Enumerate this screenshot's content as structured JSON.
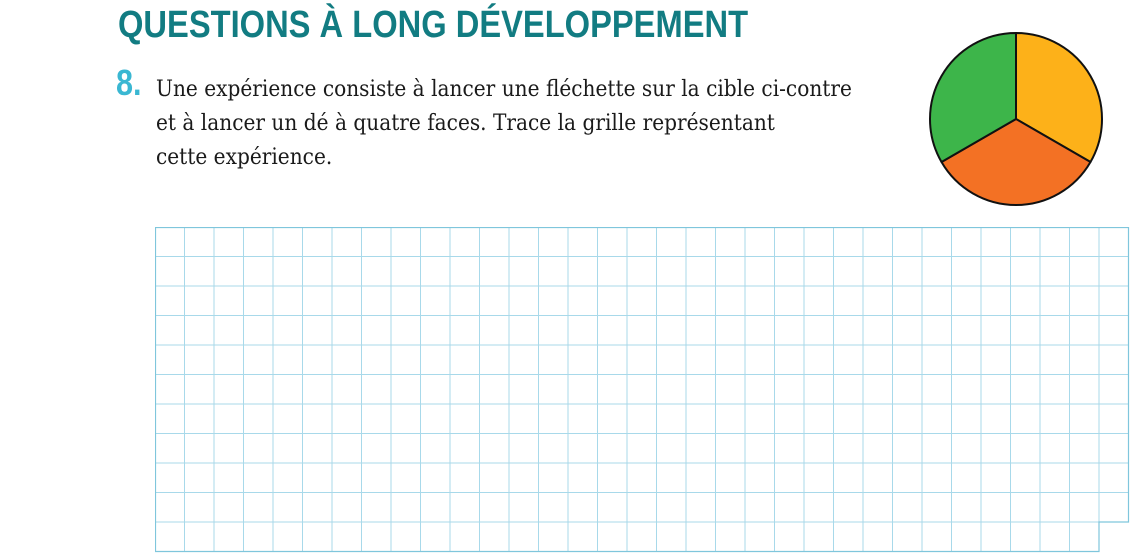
{
  "section": {
    "title": "QUESTIONS À LONG DÉVELOPPEMENT"
  },
  "question": {
    "number": "8.",
    "lines": [
      "Une expérience consiste à lancer une fléchette sur la cible ci-contre",
      "et à lancer un dé à quatre faces. Trace la grille représentant",
      "cette expérience."
    ]
  },
  "target": {
    "sectors": [
      {
        "color": "#FDB119",
        "name": "yellow-sector"
      },
      {
        "color": "#F37124",
        "name": "orange-sector"
      },
      {
        "color": "#3DB54A",
        "name": "green-sector"
      }
    ],
    "outline_color": "#111111"
  },
  "colors": {
    "title": "#127c82",
    "number": "#3ab7d2",
    "grid_line": "#a8d9ea",
    "grid_border": "#7fc6dc"
  }
}
